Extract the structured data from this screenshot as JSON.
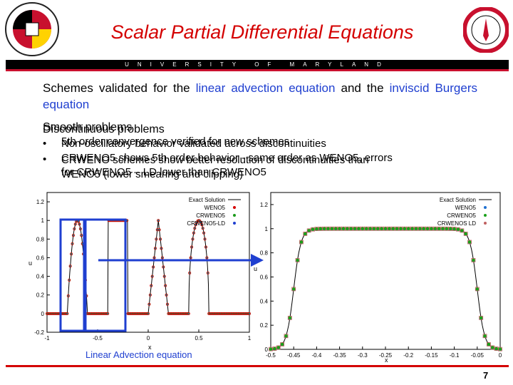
{
  "header": {
    "title": "Scalar Partial Differential Equations",
    "banner_text": "UNIVERSITY OF MARYLAND",
    "colors": {
      "title": "#d40000",
      "banner": "#000000",
      "accent": "#1f3fd0"
    }
  },
  "intro": {
    "part1": "Schemes validated for the ",
    "link1": "linear advection equation",
    "part2": " and the ",
    "link2": "inviscid Burgers equation"
  },
  "overlap_headings": {
    "a": "Smooth problems",
    "b": "Discontinuous problems"
  },
  "bullets": {
    "b1a": "5th order convergence verified for new schemes",
    "b1b": "Non-oscillatory behavior validated across discontinuities",
    "b2a": "CRWENO5 shows 5th order behavior - same order as WENO5, errors",
    "b2b": "CRWENO schemes show better resolution of discontinuities than",
    "b2c": "for CRWENO5 – LD lower than CRWENO5",
    "b2d": "WENO5 (lower smearing and clipping)"
  },
  "caption": "Linear Advection equation",
  "page_number": "7",
  "chart_data": [
    {
      "type": "scatter",
      "title": "",
      "xlabel": "x",
      "ylabel": "u",
      "xlim": [
        -1,
        1
      ],
      "ylim": [
        -0.2,
        1.3
      ],
      "xticks": [
        "-1",
        "-0.5",
        "0",
        "0.5",
        "1"
      ],
      "yticks": [
        "-0.2",
        "0",
        "0.2",
        "0.4",
        "0.6",
        "0.8",
        "1",
        "1.2"
      ],
      "legend_position": "top-right",
      "legend": [
        "Exact Solution",
        "WENO5",
        "CRWENO5",
        "CRWENO5-LD"
      ],
      "series": [
        {
          "name": "Exact Solution",
          "marker": "line",
          "color": "#000000"
        },
        {
          "name": "WENO5",
          "marker": "plus",
          "color": "#d40000"
        },
        {
          "name": "CRWENO5",
          "marker": "cross",
          "color": "#1a9a1a"
        },
        {
          "name": "CRWENO5-LD",
          "marker": "star",
          "color": "#1f3fd0"
        }
      ]
    },
    {
      "type": "scatter",
      "title": "",
      "xlabel": "x",
      "ylabel": "u",
      "xlim": [
        -0.5,
        0
      ],
      "ylim": [
        0,
        1.3
      ],
      "xticks": [
        "-0.5",
        "-0.45",
        "-0.4",
        "-0.35",
        "-0.3",
        "-0.25",
        "-0.2",
        "-0.15",
        "-0.1",
        "-0.05",
        "0"
      ],
      "yticks": [
        "0",
        "0.2",
        "0.4",
        "0.6",
        "0.8",
        "1",
        "1.2"
      ],
      "legend_position": "top-right",
      "legend": [
        "Exact Solution",
        "WENO5",
        "CRWENO5",
        "CRWENOS LD"
      ],
      "series": [
        {
          "name": "Exact Solution",
          "marker": "line",
          "color": "#000000"
        },
        {
          "name": "WENO5",
          "marker": "triangle",
          "color": "#1f6fd0"
        },
        {
          "name": "CRWENO5",
          "marker": "circle",
          "color": "#1aa01a"
        },
        {
          "name": "CRWENOS LD",
          "marker": "square",
          "color": "#c06060"
        }
      ]
    }
  ]
}
